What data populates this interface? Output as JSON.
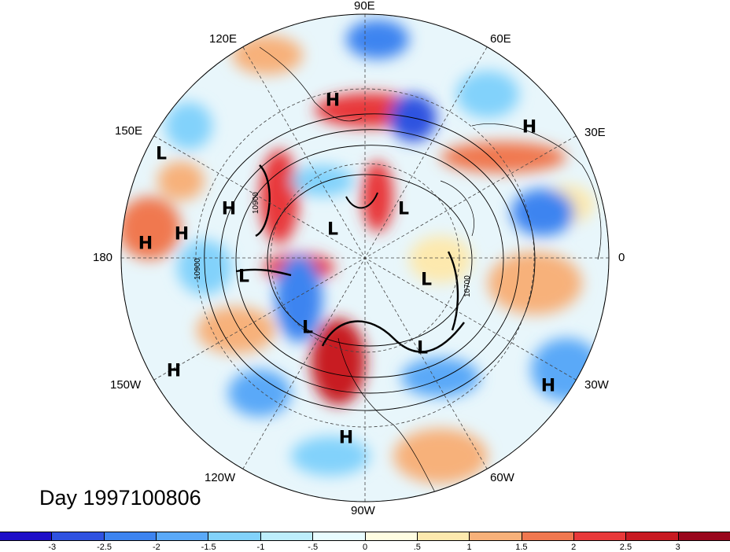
{
  "map": {
    "longitude_labels": [
      "90E",
      "60E",
      "30E",
      "0",
      "30W",
      "60W",
      "90W",
      "120W",
      "150W",
      "180",
      "150E",
      "120E"
    ],
    "contour_labels": [
      "10900",
      "10900",
      "10700"
    ],
    "pressure_centers": [
      {
        "symbol": "H"
      },
      {
        "symbol": "H"
      },
      {
        "symbol": "L"
      },
      {
        "symbol": "H"
      },
      {
        "symbol": "H"
      },
      {
        "symbol": "H"
      },
      {
        "symbol": "L"
      },
      {
        "symbol": "L"
      },
      {
        "symbol": "L"
      },
      {
        "symbol": "L"
      },
      {
        "symbol": "L"
      },
      {
        "symbol": "L"
      },
      {
        "symbol": "H"
      },
      {
        "symbol": "H"
      },
      {
        "symbol": "H"
      }
    ]
  },
  "day_label": "Day 1997100806",
  "colorbar": {
    "labels": [
      "-3",
      "-2.5",
      "-2",
      "-1.5",
      "-1",
      "-.5",
      "0",
      ".5",
      "1",
      "1.5",
      "2",
      "2.5",
      "3"
    ],
    "colors": [
      "#1e0fc8",
      "#2f52e0",
      "#3d84f0",
      "#5aa9f8",
      "#82d2fb",
      "#bdeefc",
      "#e8fcff",
      "#fffde2",
      "#fde9ae",
      "#f7b17a",
      "#f07850",
      "#e8393a",
      "#c81a22",
      "#99061c"
    ]
  }
}
